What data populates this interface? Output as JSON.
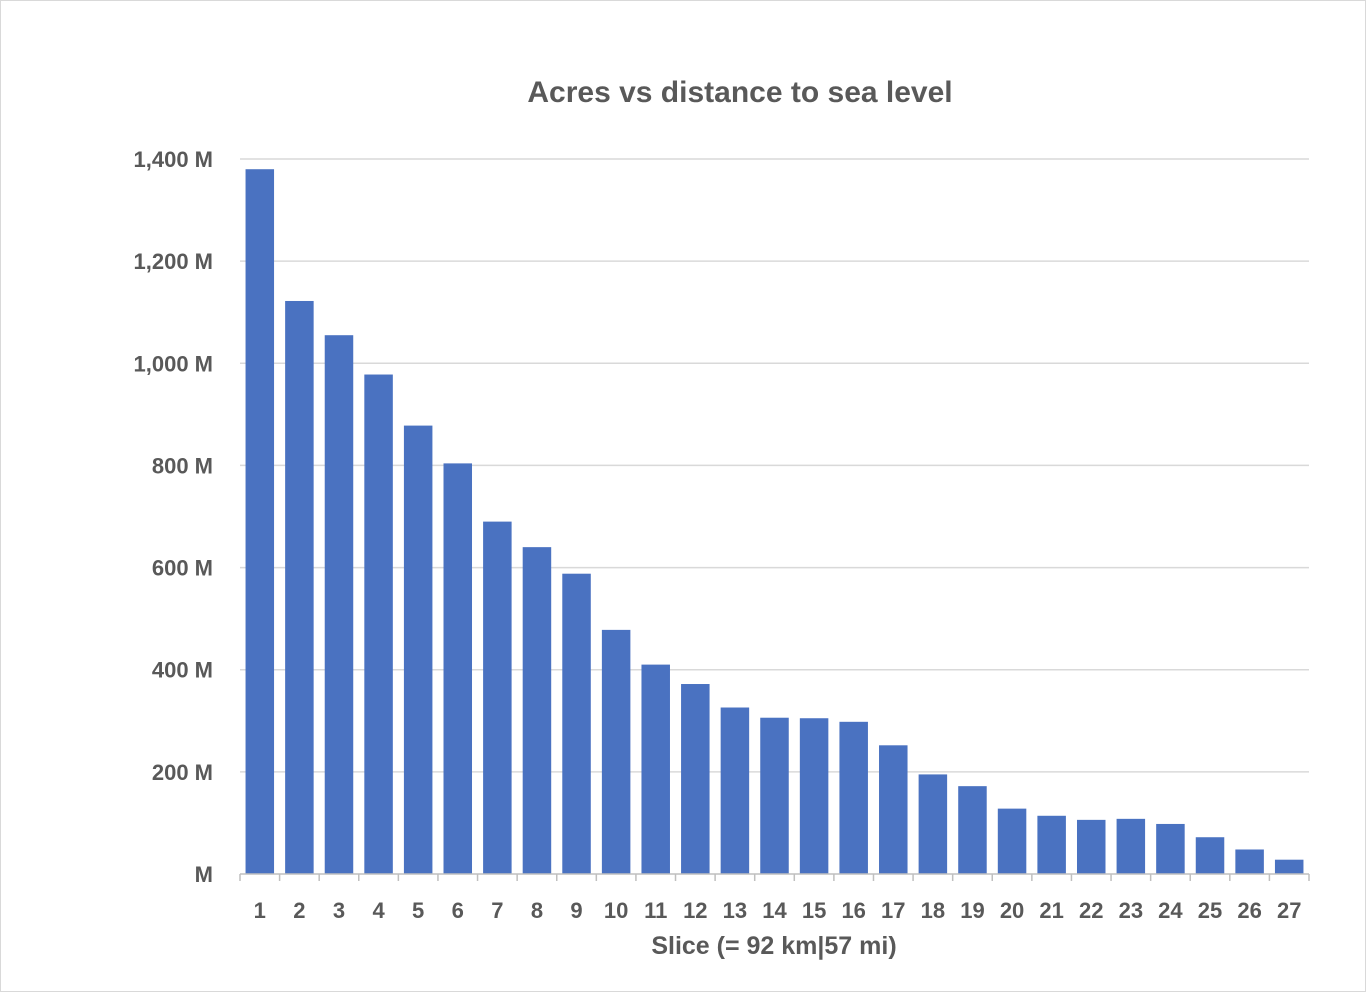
{
  "chart_data": {
    "type": "bar",
    "title": "Acres vs distance to sea level",
    "xlabel": "Slice (= 92 km|57 mi)",
    "ylabel": "",
    "categories": [
      "1",
      "2",
      "3",
      "4",
      "5",
      "6",
      "7",
      "8",
      "9",
      "10",
      "11",
      "12",
      "13",
      "14",
      "15",
      "16",
      "17",
      "18",
      "19",
      "20",
      "21",
      "22",
      "23",
      "24",
      "25",
      "26",
      "27"
    ],
    "values": [
      1380,
      1122,
      1055,
      978,
      878,
      804,
      690,
      640,
      588,
      478,
      410,
      372,
      326,
      306,
      305,
      298,
      252,
      195,
      172,
      128,
      114,
      106,
      108,
      98,
      72,
      48,
      28
    ],
    "value_unit": "M",
    "ylim": [
      0,
      1400
    ],
    "yticks": [
      0,
      200,
      400,
      600,
      800,
      1000,
      1200,
      1400
    ],
    "ytick_labels": [
      "M",
      "200 M",
      "400 M",
      "600 M",
      "800 M",
      "1,000 M",
      "1,200 M",
      "1,400 M"
    ],
    "grid": true,
    "legend": "none",
    "colors": {
      "bar": "#4a72c1",
      "grid": "#d9d9d9",
      "text": "#595959",
      "axis": "#bfbfbf"
    }
  }
}
